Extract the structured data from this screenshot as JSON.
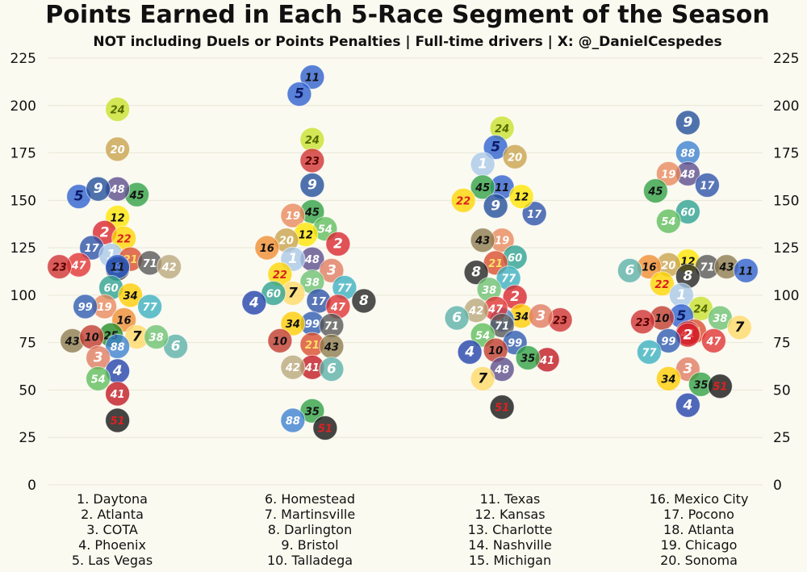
{
  "title": "Points Earned in Each 5-Race Segment of the Season",
  "subtitle": "NOT including Duels or Points Penalties | Full-time drivers | X: @_DanielCespedes",
  "chart_data": {
    "type": "scatter",
    "ylim": [
      0,
      225
    ],
    "yticks": [
      0,
      25,
      50,
      75,
      100,
      125,
      150,
      175,
      200,
      225
    ],
    "grid": true,
    "segments": [
      {
        "races": [
          "1. Daytona",
          "2. Atlanta",
          "3. COTA",
          "4. Phoenix",
          "5. Las Vegas"
        ],
        "points": [
          {
            "car": "24",
            "y": 198
          },
          {
            "car": "20",
            "y": 177
          },
          {
            "car": "45",
            "y": 153
          },
          {
            "car": "5",
            "y": 152
          },
          {
            "car": "48",
            "y": 156
          },
          {
            "car": "9",
            "y": 156
          },
          {
            "car": "12",
            "y": 141
          },
          {
            "car": "2",
            "y": 133
          },
          {
            "car": "22",
            "y": 130
          },
          {
            "car": "17",
            "y": 125
          },
          {
            "car": "1",
            "y": 121
          },
          {
            "car": "21",
            "y": 119
          },
          {
            "car": "71",
            "y": 117
          },
          {
            "car": "42",
            "y": 115
          },
          {
            "car": "47",
            "y": 116
          },
          {
            "car": "8",
            "y": 114
          },
          {
            "car": "23",
            "y": 115
          },
          {
            "car": "11",
            "y": 115
          },
          {
            "car": "60",
            "y": 104
          },
          {
            "car": "34",
            "y": 100
          },
          {
            "car": "19",
            "y": 94
          },
          {
            "car": "99",
            "y": 94
          },
          {
            "car": "77",
            "y": 94
          },
          {
            "car": "16",
            "y": 87
          },
          {
            "car": "25",
            "y": 79
          },
          {
            "car": "43",
            "y": 76
          },
          {
            "car": "7",
            "y": 78
          },
          {
            "car": "6",
            "y": 73
          },
          {
            "car": "10",
            "y": 78
          },
          {
            "car": "38",
            "y": 78
          },
          {
            "car": "88",
            "y": 73
          },
          {
            "car": "3",
            "y": 67
          },
          {
            "car": "4",
            "y": 60
          },
          {
            "car": "54",
            "y": 56
          },
          {
            "car": "41",
            "y": 48
          },
          {
            "car": "51",
            "y": 34
          }
        ]
      },
      {
        "races": [
          "6. Homestead",
          "7. Martinsville",
          "8. Darlington",
          "9. Bristol",
          "10. Talladega"
        ],
        "points": [
          {
            "car": "11",
            "y": 215
          },
          {
            "car": "5",
            "y": 206
          },
          {
            "car": "24",
            "y": 182
          },
          {
            "car": "23",
            "y": 171
          },
          {
            "car": "9",
            "y": 158
          },
          {
            "car": "45",
            "y": 144
          },
          {
            "car": "19",
            "y": 142
          },
          {
            "car": "54",
            "y": 135
          },
          {
            "car": "12",
            "y": 132
          },
          {
            "car": "20",
            "y": 129
          },
          {
            "car": "2",
            "y": 127
          },
          {
            "car": "16",
            "y": 125
          },
          {
            "car": "48",
            "y": 119
          },
          {
            "car": "1",
            "y": 119
          },
          {
            "car": "3",
            "y": 113
          },
          {
            "car": "22",
            "y": 111
          },
          {
            "car": "38",
            "y": 107
          },
          {
            "car": "77",
            "y": 104
          },
          {
            "car": "7",
            "y": 101
          },
          {
            "car": "60",
            "y": 101
          },
          {
            "car": "17",
            "y": 97
          },
          {
            "car": "8",
            "y": 97
          },
          {
            "car": "4",
            "y": 96
          },
          {
            "car": "47",
            "y": 94
          },
          {
            "car": "99",
            "y": 85
          },
          {
            "car": "34",
            "y": 85
          },
          {
            "car": "71",
            "y": 84
          },
          {
            "car": "21",
            "y": 74
          },
          {
            "car": "43",
            "y": 73
          },
          {
            "car": "10",
            "y": 76
          },
          {
            "car": "41",
            "y": 62
          },
          {
            "car": "42",
            "y": 62
          },
          {
            "car": "6",
            "y": 61
          },
          {
            "car": "35",
            "y": 39
          },
          {
            "car": "88",
            "y": 34
          },
          {
            "car": "51",
            "y": 30
          }
        ]
      },
      {
        "races": [
          "11. Texas",
          "12. Kansas",
          "13. Charlotte",
          "14. Nashville",
          "15. Michigan"
        ],
        "points": [
          {
            "car": "24",
            "y": 188
          },
          {
            "car": "5",
            "y": 178
          },
          {
            "car": "20",
            "y": 173
          },
          {
            "car": "1",
            "y": 169
          },
          {
            "car": "11",
            "y": 157
          },
          {
            "car": "45",
            "y": 157
          },
          {
            "car": "9",
            "y": 147
          },
          {
            "car": "17",
            "y": 143
          },
          {
            "car": "12",
            "y": 152
          },
          {
            "car": "22",
            "y": 150
          },
          {
            "car": "19",
            "y": 129
          },
          {
            "car": "43",
            "y": 129
          },
          {
            "car": "60",
            "y": 120
          },
          {
            "car": "21",
            "y": 117
          },
          {
            "car": "8",
            "y": 112
          },
          {
            "car": "77",
            "y": 109
          },
          {
            "car": "38",
            "y": 103
          },
          {
            "car": "2",
            "y": 99
          },
          {
            "car": "34",
            "y": 89
          },
          {
            "car": "23",
            "y": 87
          },
          {
            "car": "88",
            "y": 87
          },
          {
            "car": "3",
            "y": 89
          },
          {
            "car": "47",
            "y": 93
          },
          {
            "car": "42",
            "y": 92
          },
          {
            "car": "6",
            "y": 88
          },
          {
            "car": "71",
            "y": 84
          },
          {
            "car": "54",
            "y": 79
          },
          {
            "car": "99",
            "y": 75
          },
          {
            "car": "10",
            "y": 71
          },
          {
            "car": "4",
            "y": 70
          },
          {
            "car": "41",
            "y": 66
          },
          {
            "car": "35",
            "y": 67
          },
          {
            "car": "48",
            "y": 61
          },
          {
            "car": "7",
            "y": 56
          },
          {
            "car": "51",
            "y": 41
          }
        ]
      },
      {
        "races": [
          "16. Mexico City",
          "17. Pocono",
          "18. Atlanta",
          "19. Chicago",
          "20. Sonoma"
        ],
        "points": [
          {
            "car": "9",
            "y": 191
          },
          {
            "car": "88",
            "y": 175
          },
          {
            "car": "48",
            "y": 164
          },
          {
            "car": "19",
            "y": 164
          },
          {
            "car": "17",
            "y": 158
          },
          {
            "car": "45",
            "y": 155
          },
          {
            "car": "60",
            "y": 144
          },
          {
            "car": "54",
            "y": 139
          },
          {
            "car": "12",
            "y": 118
          },
          {
            "car": "20",
            "y": 116
          },
          {
            "car": "71",
            "y": 115
          },
          {
            "car": "16",
            "y": 115
          },
          {
            "car": "6",
            "y": 113
          },
          {
            "car": "43",
            "y": 115
          },
          {
            "car": "11",
            "y": 113
          },
          {
            "car": "8",
            "y": 110
          },
          {
            "car": "22",
            "y": 106
          },
          {
            "car": "1",
            "y": 100
          },
          {
            "car": "24",
            "y": 93
          },
          {
            "car": "5",
            "y": 89
          },
          {
            "car": "10",
            "y": 88
          },
          {
            "car": "38",
            "y": 88
          },
          {
            "car": "23",
            "y": 86
          },
          {
            "car": "7",
            "y": 83
          },
          {
            "car": "21",
            "y": 81
          },
          {
            "car": "41",
            "y": 80
          },
          {
            "car": "2",
            "y": 79
          },
          {
            "car": "99",
            "y": 76
          },
          {
            "car": "47",
            "y": 76
          },
          {
            "car": "77",
            "y": 70
          },
          {
            "car": "3",
            "y": 61
          },
          {
            "car": "34",
            "y": 56
          },
          {
            "car": "35",
            "y": 53
          },
          {
            "car": "51",
            "y": 52
          },
          {
            "car": "4",
            "y": 42
          }
        ]
      }
    ]
  },
  "car_colors": {
    "1": "#a8c8e8",
    "2": "#d8232a",
    "3": "#e07a5f",
    "4": "#1f3faa",
    "5": "#2a5fd0",
    "6": "#5ab0a8",
    "7": "#ffd966",
    "8": "#202020",
    "9": "#1f4b99",
    "10": "#c0392b",
    "11": "#2c5dcd",
    "12": "#ffe600",
    "16": "#f08c30",
    "17": "#2a4fa8",
    "19": "#e8865a",
    "20": "#c8a14a",
    "21": "#d84a2a",
    "22": "#ffd500",
    "23": "#d03030",
    "24": "#c8e02a",
    "25": "#228b22",
    "34": "#ffcc00",
    "35": "#2ea043",
    "38": "#6cc070",
    "41": "#c0151f",
    "42": "#b8a67a",
    "43": "#8c7a4c",
    "45": "#2ea043",
    "47": "#e03030",
    "48": "#5a4a8a",
    "51": "#111111",
    "54": "#5cbd5a",
    "60": "#2aa090",
    "71": "#555555",
    "77": "#38b0c0",
    "88": "#3a7fd0",
    "99": "#2a58b0"
  },
  "car_text_colors": {
    "1": "#ffffff",
    "2": "#ffffff",
    "3": "#ffffff",
    "4": "#ffffff",
    "5": "#0a1a66",
    "6": "#ffffff",
    "7": "#111111",
    "8": "#ffffff",
    "9": "#ffffff",
    "10": "#111111",
    "11": "#111111",
    "12": "#111111",
    "16": "#111111",
    "17": "#ffffff",
    "19": "#ffffff",
    "20": "#ffffff",
    "21": "#ffe066",
    "22": "#d82020",
    "23": "#550000",
    "24": "#556b00",
    "25": "#111111",
    "34": "#111111",
    "35": "#111111",
    "38": "#ffffff",
    "41": "#ffffff",
    "42": "#ffffff",
    "43": "#111111",
    "45": "#111111",
    "47": "#ffffff",
    "48": "#ffffff",
    "51": "#e02020",
    "54": "#ffffff",
    "60": "#ffffff",
    "71": "#ffffff",
    "77": "#ffffff",
    "88": "#ffffff",
    "99": "#ffffff"
  }
}
